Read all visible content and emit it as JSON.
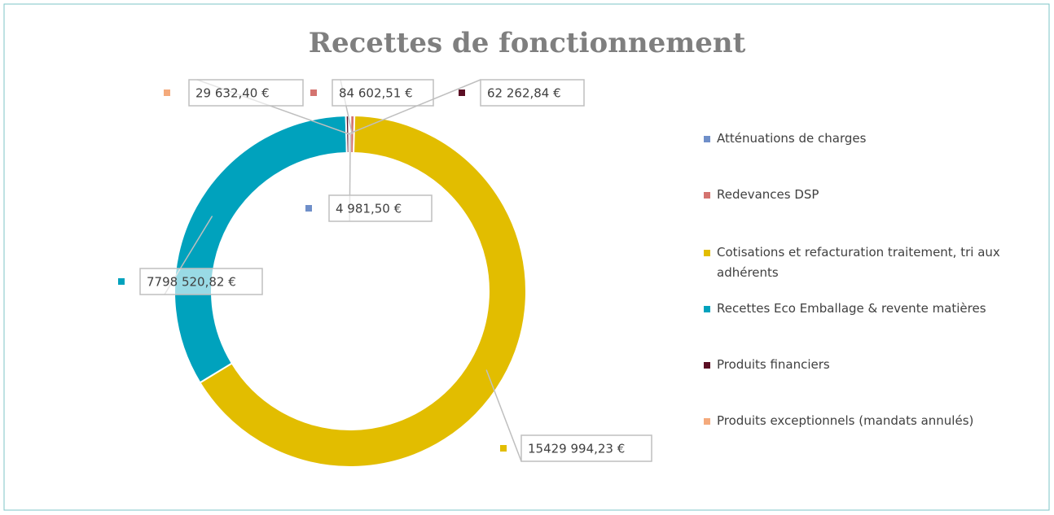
{
  "chart_data": {
    "type": "donut",
    "title": "Recettes de fonctionnement",
    "categories": [
      "Atténuations de charges",
      "Redevances DSP",
      "Cotisations et refacturation traitement, tri aux adhérents",
      "Recettes Eco Emballage & revente matières",
      "Produits financiers",
      "Produits exceptionnels (mandats annulés)"
    ],
    "values": [
      4981.5,
      84602.51,
      15429994.23,
      7798520.82,
      62262.84,
      29632.4
    ],
    "value_labels": [
      "4 981,50 €",
      "84 602,51 €",
      "15429 994,23 €",
      "7798 520,82 €",
      "62 262,84 €",
      "29 632,40 €"
    ],
    "colors": [
      "#6f8fc9",
      "#d4736f",
      "#e2bd00",
      "#00a2bd",
      "#5b0f24",
      "#f4aa7c"
    ],
    "legend": "right"
  }
}
